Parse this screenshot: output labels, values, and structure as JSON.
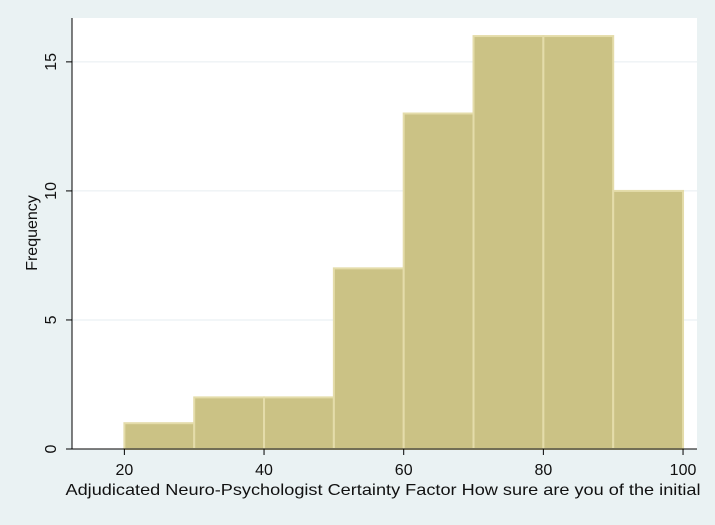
{
  "chart_data": {
    "type": "bar",
    "xlabel": "Adjudicated Neuro-Psychologist Certainty Factor  How sure are you of the initial",
    "ylabel": "Frequency",
    "bins": [
      {
        "x0": 20,
        "x1": 30,
        "value": 1
      },
      {
        "x0": 30,
        "x1": 40,
        "value": 2
      },
      {
        "x0": 40,
        "x1": 50,
        "value": 2
      },
      {
        "x0": 50,
        "x1": 60,
        "value": 7
      },
      {
        "x0": 60,
        "x1": 70,
        "value": 13
      },
      {
        "x0": 70,
        "x1": 80,
        "value": 16
      },
      {
        "x0": 80,
        "x1": 90,
        "value": 16
      },
      {
        "x0": 90,
        "x1": 100,
        "value": 10
      }
    ],
    "xticks": [
      20,
      40,
      60,
      80,
      100
    ],
    "yticks": [
      0,
      5,
      10,
      15
    ],
    "xlim": [
      12.5,
      102
    ],
    "ylim": [
      0,
      16.7
    ],
    "grid": "horizontal",
    "colors": {
      "background": "#eaf2f3",
      "plot_area": "#ffffff",
      "bar_fill": "#cbc285",
      "bar_edge": "#e4dcaa",
      "grid": "#e6eef0",
      "axis": "#000000"
    }
  }
}
